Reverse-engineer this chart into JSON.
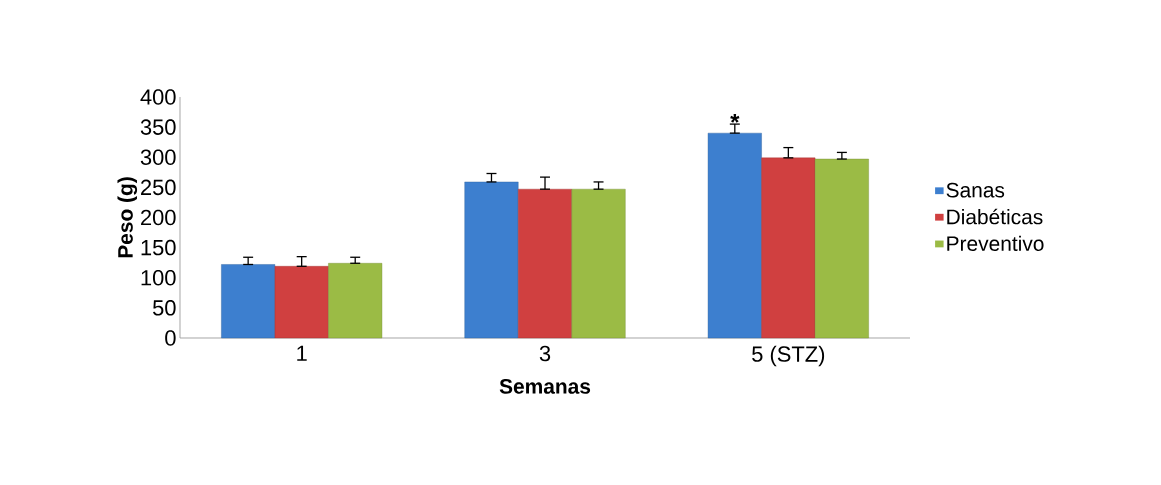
{
  "chart_data": {
    "type": "bar",
    "xlabel": "Semanas",
    "ylabel": "Peso (g)",
    "categories": [
      "1",
      "3",
      "5 (STZ)"
    ],
    "series": [
      {
        "name": "Sanas",
        "color": "#3d7fcf",
        "values": [
          122,
          259,
          340
        ],
        "errors": [
          [
            122,
            134
          ],
          [
            259,
            273
          ],
          [
            340,
            355
          ]
        ]
      },
      {
        "name": "Diabéticas",
        "color": "#d04040",
        "values": [
          119,
          247,
          299
        ],
        "errors": [
          [
            119,
            135
          ],
          [
            247,
            267
          ],
          [
            299,
            316
          ]
        ]
      },
      {
        "name": "Preventivo",
        "color": "#9bbb45",
        "values": [
          124,
          247,
          297
        ],
        "errors": [
          [
            124,
            134
          ],
          [
            247,
            259
          ],
          [
            297,
            308
          ]
        ]
      }
    ],
    "ylim": [
      0,
      400
    ],
    "yticks": [
      0,
      50,
      100,
      150,
      200,
      250,
      300,
      350,
      400
    ],
    "annotations": [
      "*"
    ],
    "legend": "right",
    "grid": false
  }
}
